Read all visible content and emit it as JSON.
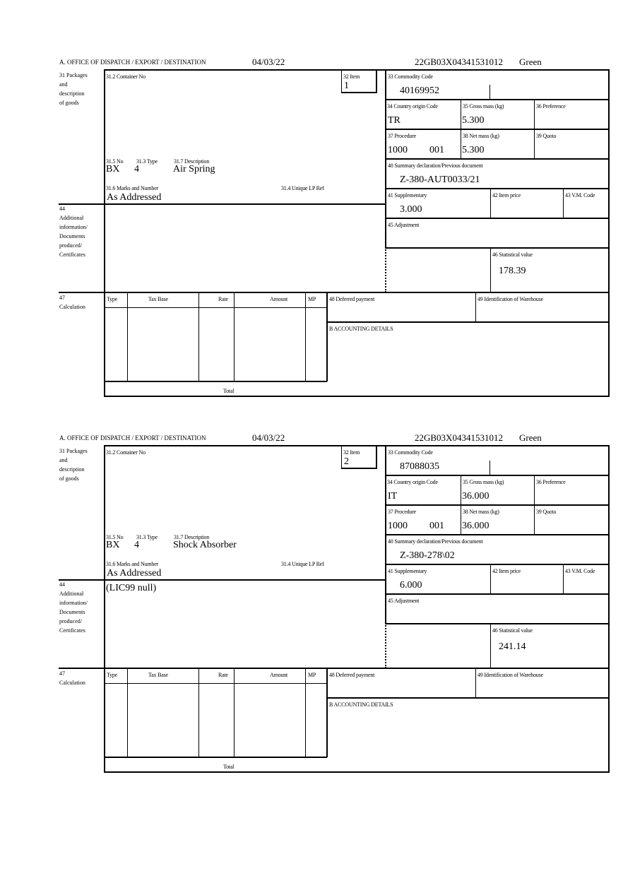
{
  "labels": {
    "office": "A. OFFICE OF DISPATCH / EXPORT / DESTINATION",
    "packages": "31 Packages\nand\ndescription\nof goods",
    "container_no": "31.2 Container No",
    "item": "32 Item",
    "no": "31.5 No",
    "type": "31.3 Type",
    "description": "31.7 Description",
    "marks": "31.6 Marks and Number",
    "unique_lp": "31.4 Unique LP Ref",
    "additional": "44\nAdditional\ninformation/\nDocuments\nproduced/\nCertificates",
    "commodity_code": "33 Commodity Code",
    "country_origin": "34 Country origin Code",
    "gross_mass": "35 Gross mass (kg)",
    "preference": "36 Preference",
    "procedure": "37 Procedure",
    "net_mass": "38 Net mass (kg)",
    "quota": "39 Quota",
    "summary_declaration": "40 Summary declaration/Previous document",
    "supplementary": "41 Supplementary",
    "item_price": "42 Item price",
    "vm_code": "43 V.M. Code",
    "adjustment": "45 Adjustment",
    "statistical_value": "46 Statistical value",
    "calculation": "47\nCalculation",
    "calc_type": "Type",
    "calc_tax_base": "Tax Base",
    "calc_rate": "Rate",
    "calc_amount": "Amount",
    "calc_mp": "MP",
    "deferred_payment": "48 Deferred payment",
    "warehouse": "49 Identification of Warehouse",
    "accounting": "B ACCOUNTING DETAILS",
    "total": "Total"
  },
  "forms": [
    {
      "date": "04/03/22",
      "reference": "22GB03X04341531012",
      "route": "Green",
      "item": "1",
      "package_kind": "BX",
      "package_count": "4",
      "description": "Air Spring",
      "marks": "As Addressed",
      "additional_info": "",
      "commodity_code": "40169952",
      "country_origin": "TR",
      "gross_mass": "5.300",
      "procedure": "1000",
      "procedure_additional": "001",
      "net_mass": "5.300",
      "summary_declaration": "Z-380-AUT0033/21",
      "supplementary": "3.000",
      "statistical_value": "178.39"
    },
    {
      "date": "04/03/22",
      "reference": "22GB03X04341531012",
      "route": "Green",
      "item": "2",
      "package_kind": "BX",
      "package_count": "4",
      "description": "Shock Absorber",
      "marks": "As Addressed",
      "additional_info": "(LIC99 null)",
      "commodity_code": "87088035",
      "country_origin": "IT",
      "gross_mass": "36.000",
      "procedure": "1000",
      "procedure_additional": "001",
      "net_mass": "36.000",
      "summary_declaration": "Z-380-278\\02",
      "supplementary": "6.000",
      "statistical_value": "241.14"
    }
  ]
}
